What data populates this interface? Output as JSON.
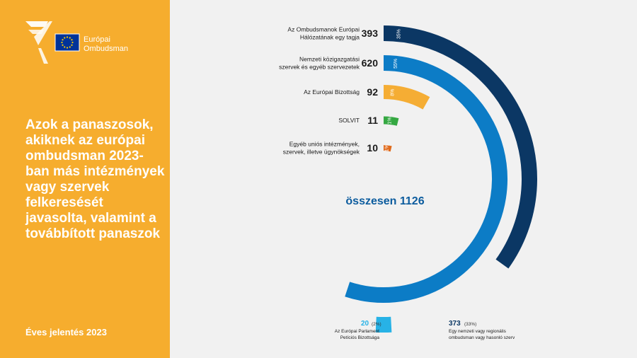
{
  "branding": {
    "logo_line1": "Európai",
    "logo_line2": "Ombudsman"
  },
  "headline": "Azok a panaszosok, akiknek az európai ombudsman 2023-ban más intézmények vagy szervek felkeresését javasolta, valamint a továbbított panaszok",
  "footer": "Éves jelentés 2023",
  "colors": {
    "left_panel": "#f6ad2e",
    "navy": "#0b3764",
    "blue": "#0c7cc6",
    "orange": "#f5ad34",
    "green": "#35a842",
    "red_orange": "#e06a1b",
    "light_blue": "#27b2e6"
  },
  "chart_data": {
    "type": "radial_bar",
    "total_label": "összesen 1126",
    "total": 1126,
    "series": [
      {
        "label": [
          "Az Ombudsmanok Európai",
          "Hálózatának egy tagja"
        ],
        "value": 393,
        "percent": "35%",
        "color": "#0b3764"
      },
      {
        "label": [
          "Nemzeti közigazgatási",
          "szervek és egyéb szervezetek"
        ],
        "value": 620,
        "percent": "55%",
        "color": "#0c7cc6"
      },
      {
        "label": [
          "Az Európai Bizottság"
        ],
        "value": 92,
        "percent": "8%",
        "color": "#f5ad34"
      },
      {
        "label": [
          "SOLVIT"
        ],
        "value": 11,
        "percent": "1%",
        "color": "#35a842"
      },
      {
        "label": [
          "Egyéb uniós intézmények,",
          "szervek, illetve ügynökségek"
        ],
        "value": 10,
        "percent": "1%",
        "color": "#e06a1b"
      }
    ],
    "breakdown": [
      {
        "value": 20,
        "percent": "(2%)",
        "label": [
          "Az Európai Parlament",
          "Petíciós Bizottsága"
        ],
        "color": "#27b2e6"
      },
      {
        "value": 373,
        "percent": "(33%)",
        "label": [
          "Egy nemzeti vagy regionális",
          "ombudsman vagy hasonló szerv"
        ],
        "color": "#0b3764"
      }
    ]
  }
}
